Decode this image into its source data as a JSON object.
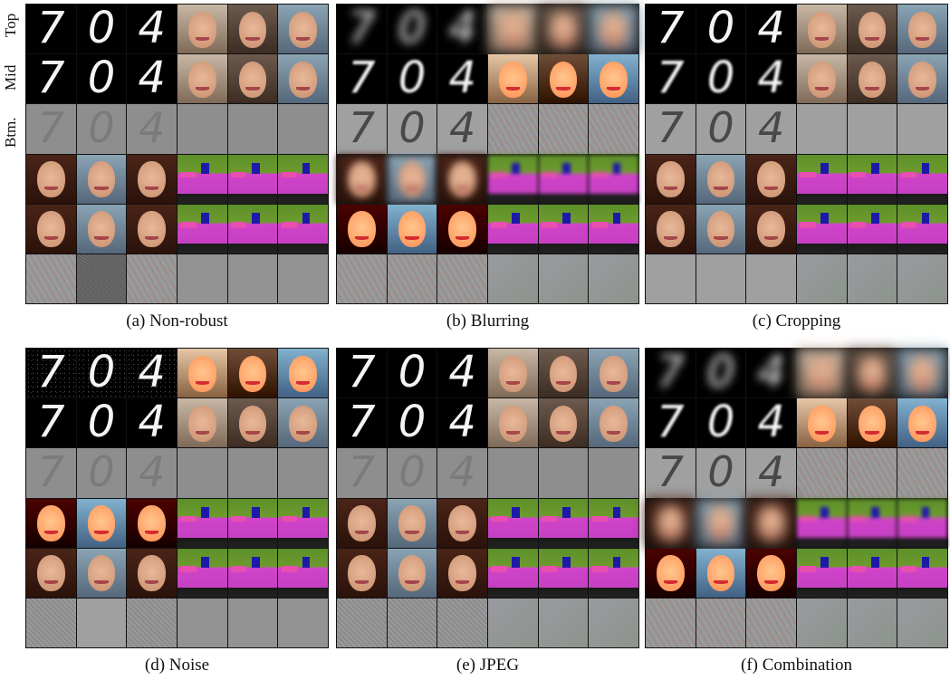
{
  "row_labels": [
    "Top",
    "Mid",
    "Btm."
  ],
  "digits": [
    "7",
    "0",
    "4"
  ],
  "captions": {
    "a": "(a) Non-robust",
    "b": "(b) Blurring",
    "c": "(c) Cropping",
    "d": "(d) Noise",
    "e": "(e) JPEG",
    "f": "(f) Combination"
  },
  "colors": {
    "segmentation_green": "#6e9b2e",
    "segmentation_magenta": "#d044c8",
    "segmentation_blue": "#1e1aa8",
    "difference_gray": "#8e8e8e"
  }
}
